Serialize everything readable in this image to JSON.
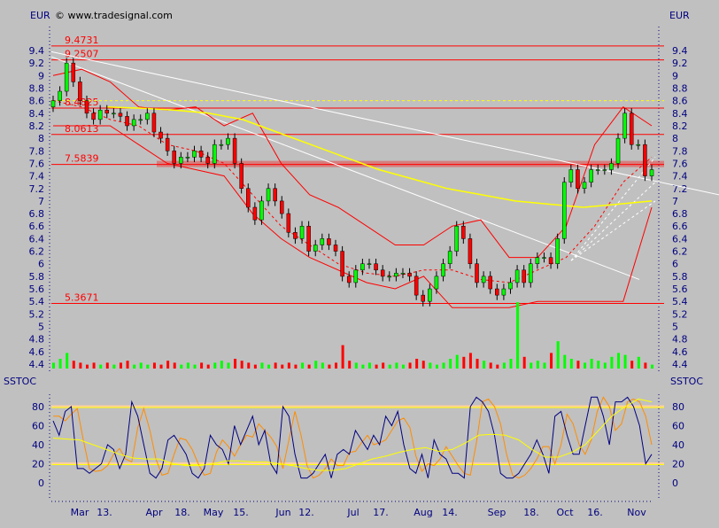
{
  "header": {
    "currency_left": "EUR",
    "currency_right": "EUR",
    "copyright": "© www.tradesignal.com"
  },
  "chart_data": [
    {
      "type": "candlestick",
      "ylabel": "EUR",
      "ylim": [
        4.3,
        9.6
      ],
      "yticks": [
        4.4,
        4.6,
        4.8,
        5,
        5.2,
        5.4,
        5.6,
        5.8,
        6,
        6.2,
        6.4,
        6.6,
        6.8,
        7,
        7.2,
        7.4,
        7.6,
        7.8,
        8,
        8.2,
        8.4,
        8.6,
        8.8,
        9,
        9.2,
        9.4
      ],
      "xticks": [
        "Mar",
        "13.",
        "Apr",
        "18.",
        "May",
        "15.",
        "Jun",
        "12.",
        "Jul",
        "17.",
        "Aug",
        "14.",
        "Sep",
        "18.",
        "Oct",
        "16.",
        "Nov"
      ],
      "grid": false,
      "close": [
        8.6,
        8.75,
        9.2,
        8.9,
        8.6,
        8.4,
        8.3,
        8.45,
        8.4,
        8.4,
        8.35,
        8.2,
        8.3,
        8.3,
        8.4,
        8.1,
        8.0,
        7.8,
        7.6,
        7.7,
        7.7,
        7.8,
        7.7,
        7.6,
        7.9,
        7.9,
        8.0,
        7.6,
        7.2,
        6.9,
        6.7,
        7.0,
        7.2,
        7.0,
        6.8,
        6.5,
        6.4,
        6.6,
        6.2,
        6.3,
        6.4,
        6.3,
        6.2,
        5.8,
        5.7,
        5.9,
        6.0,
        6.0,
        5.9,
        5.8,
        5.8,
        5.85,
        5.85,
        5.8,
        5.5,
        5.4,
        5.6,
        5.8,
        6.0,
        6.2,
        6.6,
        6.4,
        6.0,
        5.7,
        5.8,
        5.6,
        5.5,
        5.6,
        5.7,
        5.9,
        5.7,
        6.0,
        6.1,
        6.1,
        6.0,
        6.4,
        7.3,
        7.5,
        7.2,
        7.3,
        7.5,
        7.5,
        7.5,
        7.6,
        8.0,
        8.4,
        7.9,
        7.9,
        7.4,
        7.5
      ],
      "volume": [
        3,
        5,
        8,
        4,
        3,
        2,
        3,
        2,
        3,
        2,
        3,
        4,
        2,
        3,
        2,
        3,
        2,
        4,
        3,
        2,
        3,
        2,
        3,
        2,
        3,
        4,
        3,
        5,
        4,
        3,
        2,
        3,
        2,
        3,
        2,
        3,
        2,
        3,
        2,
        4,
        3,
        2,
        3,
        12,
        4,
        3,
        2,
        3,
        2,
        3,
        2,
        3,
        2,
        3,
        5,
        4,
        3,
        2,
        3,
        5,
        7,
        6,
        8,
        5,
        4,
        3,
        2,
        3,
        5,
        34,
        6,
        3,
        4,
        3,
        8,
        14,
        7,
        5,
        4,
        3,
        5,
        4,
        3,
        6,
        8,
        7,
        4,
        6,
        3,
        2
      ],
      "levels": [
        {
          "label": "9.4731",
          "value": 9.4731
        },
        {
          "label": "9.2507",
          "value": 9.2507
        },
        {
          "label": "8.4825",
          "value": 8.4825
        },
        {
          "label": "8.0613",
          "value": 8.0613
        },
        {
          "label": "7.5839",
          "value": 7.5839
        },
        {
          "label": "5.3671",
          "value": 5.3671
        }
      ],
      "resistance_dashed": 8.6,
      "moving_average_long": [
        8.5,
        8.48,
        8.45,
        8.4,
        8.3,
        8.1,
        7.9,
        7.7,
        7.5,
        7.35,
        7.2,
        7.1,
        7.0,
        6.95,
        6.9,
        6.95,
        7.0
      ],
      "moving_average_short": [
        8.6,
        8.5,
        8.3,
        8.2,
        7.9,
        7.8,
        7.6,
        7.1,
        6.6,
        6.3,
        6.0,
        5.85,
        5.8,
        5.9,
        5.9,
        5.75,
        5.7,
        5.9,
        6.1,
        6.6,
        7.3,
        7.7
      ],
      "bollinger_upper": [
        9.0,
        9.1,
        8.9,
        8.5,
        8.45,
        8.5,
        8.2,
        8.4,
        7.6,
        7.1,
        6.9,
        6.6,
        6.3,
        6.3,
        6.6,
        6.7,
        6.1,
        6.1,
        6.6,
        7.9,
        8.5,
        8.2
      ],
      "bollinger_lower": [
        8.2,
        8.2,
        8.2,
        7.9,
        7.6,
        7.5,
        7.4,
        6.8,
        6.4,
        6.1,
        5.9,
        5.7,
        5.6,
        5.8,
        5.3,
        5.3,
        5.3,
        5.4,
        5.4,
        5.4,
        5.4,
        6.9
      ],
      "colors": {
        "up": "#00ff00",
        "down": "#ff0000",
        "levels": "#ff0000",
        "ma_long": "#ffff00",
        "band": "#ff0000",
        "trend": "#ffffff",
        "axis": "#000080"
      }
    },
    {
      "type": "line",
      "title": "SSTOC",
      "ylim": [
        -15,
        95
      ],
      "yticks": [
        0,
        20,
        40,
        60,
        80
      ],
      "levels": [
        20,
        80
      ],
      "series": [
        {
          "color": "#000080",
          "values": [
            65,
            50,
            75,
            80,
            15,
            15,
            10,
            15,
            20,
            40,
            35,
            15,
            30,
            85,
            70,
            40,
            10,
            5,
            15,
            45,
            50,
            40,
            30,
            10,
            5,
            15,
            50,
            40,
            35,
            20,
            60,
            40,
            55,
            70,
            40,
            55,
            20,
            10,
            80,
            70,
            30,
            5,
            5,
            10,
            20,
            30,
            5,
            30,
            35,
            30,
            55,
            45,
            35,
            50,
            40,
            70,
            60,
            75,
            40,
            15,
            10,
            30,
            5,
            45,
            30,
            25,
            10,
            10,
            5,
            80,
            90,
            85,
            75,
            50,
            10,
            5,
            5,
            10,
            20,
            30,
            45,
            30,
            10,
            70,
            75,
            50,
            30,
            30,
            60,
            90,
            90,
            70,
            40,
            85,
            85,
            90,
            80,
            60,
            20,
            30
          ]
        },
        {
          "color": "#ff8c00",
          "values": [
            70,
            70,
            65,
            72,
            78,
            45,
            15,
            12,
            13,
            18,
            30,
            36,
            25,
            22,
            58,
            78,
            55,
            25,
            8,
            10,
            30,
            47,
            45,
            35,
            20,
            8,
            10,
            32,
            45,
            38,
            28,
            40,
            50,
            48,
            62,
            55,
            48,
            38,
            15,
            45,
            75,
            50,
            18,
            5,
            8,
            15,
            25,
            18,
            18,
            32,
            33,
            42,
            50,
            40,
            42,
            45,
            55,
            65,
            68,
            58,
            28,
            12,
            20,
            18,
            25,
            38,
            28,
            18,
            10,
            8,
            42,
            85,
            88,
            80,
            62,
            30,
            8,
            5,
            8,
            15,
            25,
            38,
            38,
            20,
            40,
            72,
            62,
            40,
            30,
            45,
            75,
            90,
            80,
            55,
            62,
            85,
            88,
            85,
            70,
            40
          ]
        },
        {
          "color": "#ffff00",
          "values": [
            47,
            46,
            45,
            40,
            35,
            30,
            26,
            25,
            25,
            20,
            18,
            18,
            20,
            23,
            23,
            22,
            22,
            20,
            18,
            15,
            13,
            13,
            15,
            20,
            25,
            28,
            32,
            35,
            37,
            33,
            35,
            42,
            50,
            51,
            50,
            45,
            35,
            27,
            27,
            32,
            40,
            55,
            70,
            80,
            88,
            85
          ]
        }
      ]
    }
  ]
}
